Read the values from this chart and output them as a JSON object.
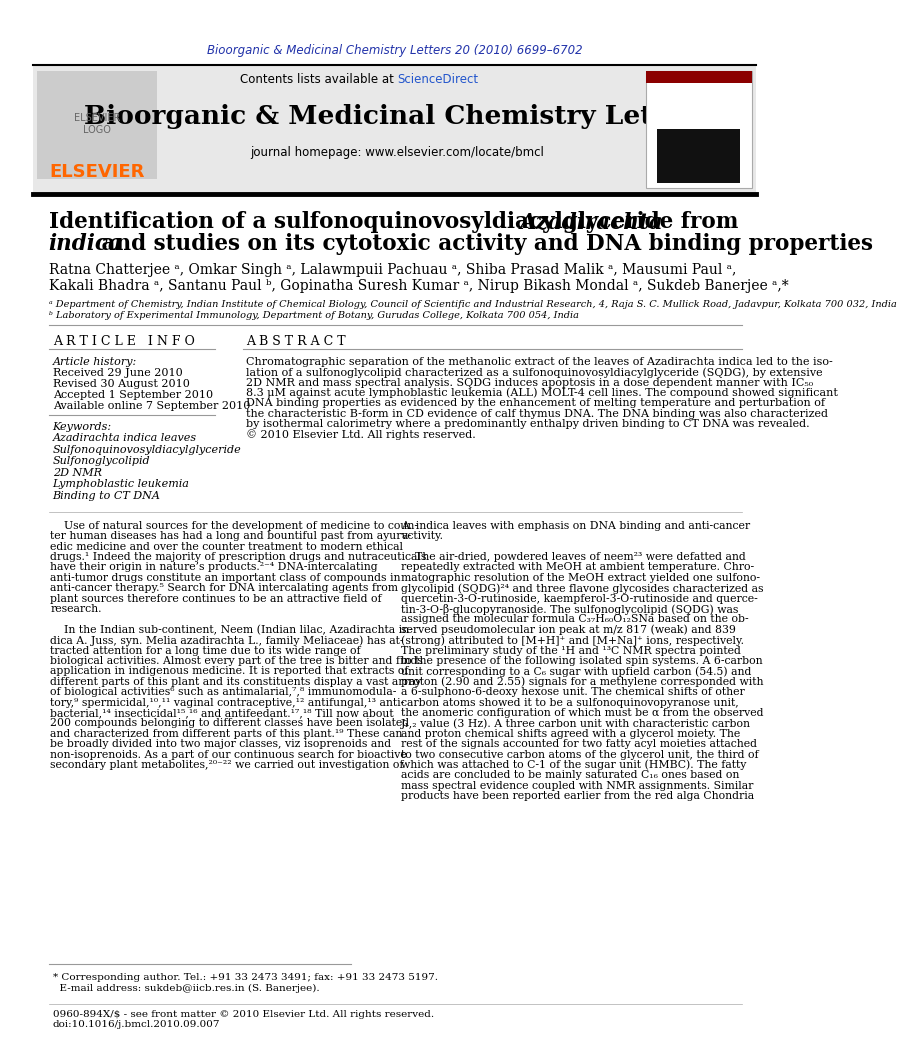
{
  "journal_ref": "Bioorganic & Medicinal Chemistry Letters 20 (2010) 6699–6702",
  "journal_ref_color": "#2233aa",
  "header_bg": "#e8e8e8",
  "contents_text": "Contents lists available at ",
  "sciencedirect_text": "ScienceDirect",
  "sciencedirect_color": "#2255cc",
  "journal_title": "Bioorganic & Medicinal Chemistry Letters",
  "journal_homepage": "journal homepage: www.elsevier.com/locate/bmcl",
  "elsevier_color": "#ff6600",
  "affil_a": "ᵃ Department of Chemistry, Indian Institute of Chemical Biology, Council of Scientific and Industrial Research, 4, Raja S. C. Mullick Road, Jadavpur, Kolkata 700 032, India",
  "affil_b": "ᵇ Laboratory of Experimental Immunology, Department of Botany, Gurudas College, Kolkata 700 054, India",
  "article_info_header": "A R T I C L E   I N F O",
  "article_history_label": "Article history:",
  "received": "Received 29 June 2010",
  "revised": "Revised 30 August 2010",
  "accepted": "Accepted 1 September 2010",
  "available": "Available online 7 September 2010",
  "keywords_label": "Keywords:",
  "keywords": [
    "Azadirachta indica leaves",
    "Sulfonoquinovosyldiacylglyceride",
    "Sulfonoglycolipid",
    "2D NMR",
    "Lymphoblastic leukemia",
    "Binding to CT DNA"
  ],
  "abstract_header": "A B S T R A C T",
  "footnote1": "* Corresponding author. Tel.: +91 33 2473 3491; fax: +91 33 2473 5197.",
  "footnote2": "  E-mail address: sukdeb@iicb.res.in (S. Banerjee).",
  "copyright1": "0960-894X/$ - see front matter © 2010 Elsevier Ltd. All rights reserved.",
  "copyright2": "doi:10.1016/j.bmcl.2010.09.007"
}
